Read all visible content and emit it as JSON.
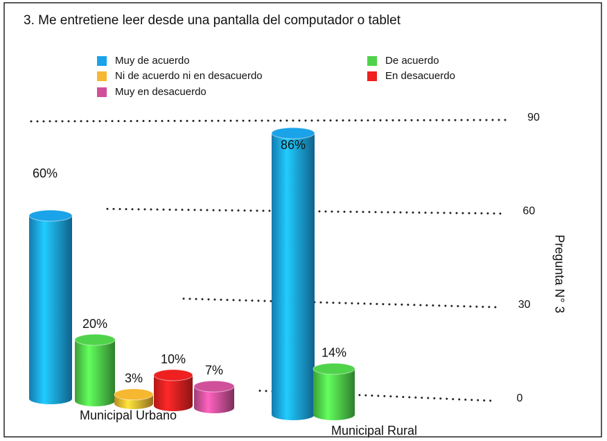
{
  "chart_data": {
    "type": "bar",
    "title": "3. Me entretiene leer desde una pantalla del computador o tablet",
    "y_label": "Pregunta N° 3",
    "categories": [
      "Municipal Urbano",
      "Municipal Rural"
    ],
    "series": [
      {
        "name": "Muy de acuerdo",
        "color": "#1aa3e8",
        "values": [
          60,
          86
        ],
        "value_labels": [
          "60%",
          "86%"
        ]
      },
      {
        "name": "De acuerdo",
        "color": "#4fd34a",
        "values": [
          20,
          14
        ],
        "value_labels": [
          "20%",
          "14%"
        ]
      },
      {
        "name": "Ni de acuerdo ni en desacuerdo",
        "color": "#f5b830",
        "values": [
          3,
          null
        ],
        "value_labels": [
          "3%",
          null
        ]
      },
      {
        "name": "En desacuerdo",
        "color": "#ee2020",
        "values": [
          10,
          null
        ],
        "value_labels": [
          "10%",
          null
        ]
      },
      {
        "name": "Muy en desacuerdo",
        "color": "#d0509a",
        "values": [
          7,
          null
        ],
        "value_labels": [
          "7%",
          null
        ]
      }
    ],
    "ylim": [
      0,
      90
    ],
    "yticks": [
      0,
      30,
      60,
      90
    ],
    "grid": true
  }
}
